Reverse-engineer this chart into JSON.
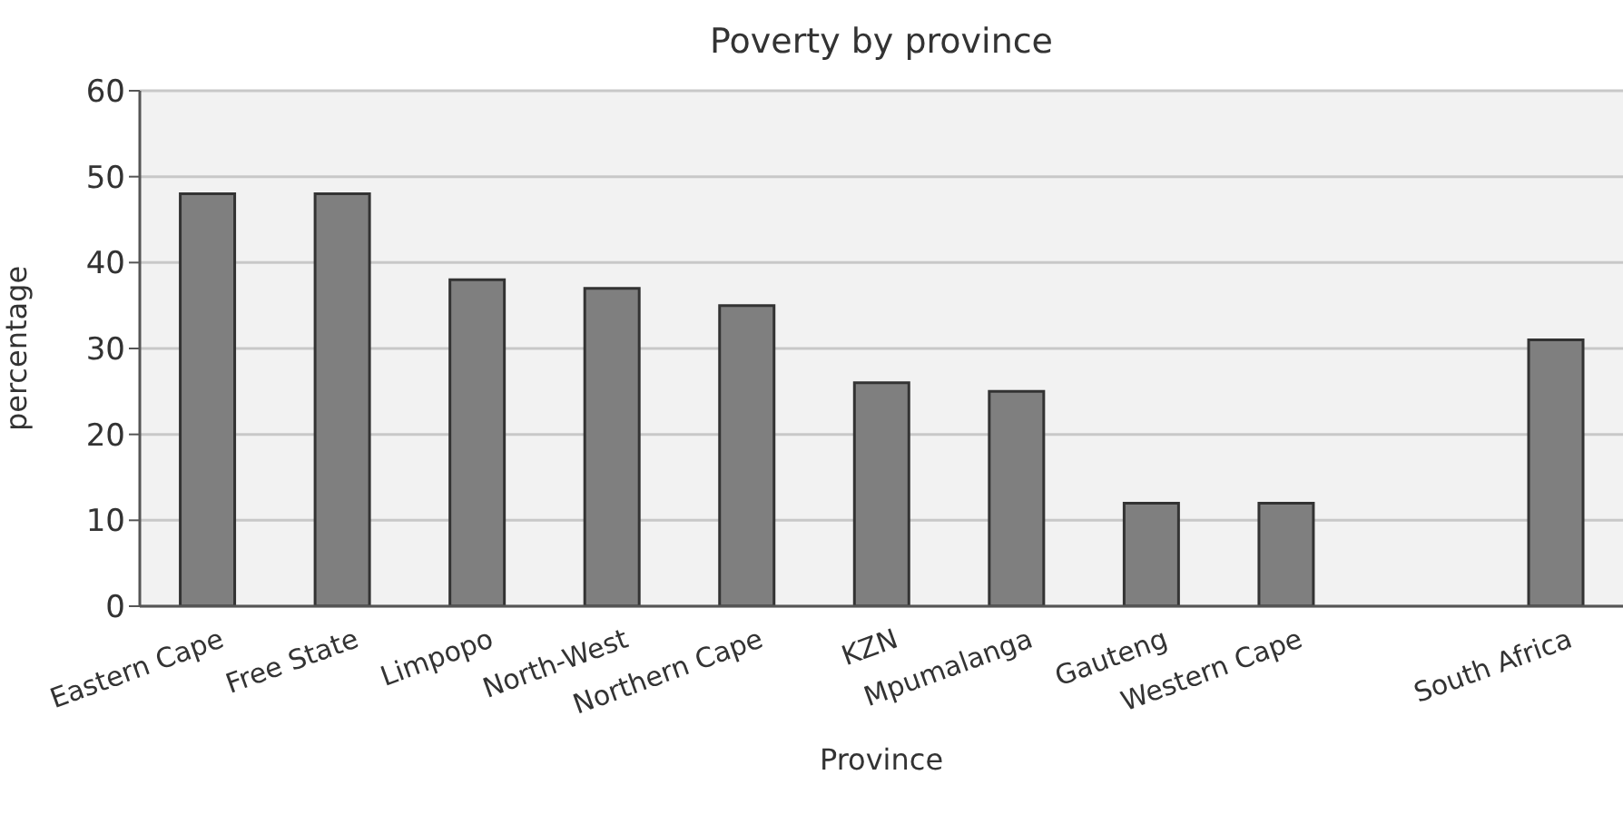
{
  "chart_data": {
    "type": "bar",
    "title": "Poverty by province",
    "xlabel": "Province",
    "ylabel": "percentage",
    "categories": [
      "Eastern Cape",
      "Free State",
      "Limpopo",
      "North-West",
      "Northern Cape",
      "KZN",
      "Mpumalanga",
      "Gauteng",
      "Western Cape",
      null,
      "South Africa"
    ],
    "values": [
      48,
      48,
      38,
      37,
      35,
      26,
      25,
      12,
      12,
      null,
      31
    ],
    "color": "#7f7f7f",
    "ylim": [
      0,
      60
    ],
    "yticks": [
      0,
      10,
      20,
      30,
      40,
      50,
      60
    ],
    "grid": "y"
  }
}
